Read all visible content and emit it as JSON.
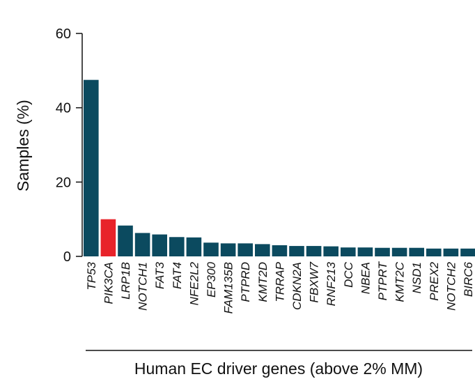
{
  "chart_data": {
    "type": "bar",
    "ylabel": "Samples (%)",
    "xlabel": "Human EC driver genes (above 2% MM)",
    "ylim": [
      0,
      60
    ],
    "yticks": [
      0,
      20,
      40,
      60
    ],
    "categories": [
      "TP53",
      "PIK3CA",
      "LRP1B",
      "NOTCH1",
      "FAT3",
      "FAT4",
      "NFE2L2",
      "EP300",
      "FAM135B",
      "PTPRD",
      "KMT2D",
      "TRRAP",
      "CDKN2A",
      "FBXW7",
      "RNF213",
      "DCC",
      "NBEA",
      "PTPRT",
      "KMT2C",
      "NSD1",
      "PREX2",
      "NOTCH2",
      "BIRC6"
    ],
    "values": [
      47.5,
      10.0,
      8.3,
      6.3,
      5.9,
      5.2,
      5.1,
      3.7,
      3.5,
      3.5,
      3.3,
      3.0,
      2.8,
      2.8,
      2.7,
      2.4,
      2.4,
      2.3,
      2.3,
      2.3,
      2.1,
      2.1,
      2.1
    ],
    "colors": {
      "default": "#0b4a5f",
      "highlight": "#e8232a",
      "highlight_category": "PIK3CA"
    },
    "grid": false,
    "legend": "none"
  }
}
